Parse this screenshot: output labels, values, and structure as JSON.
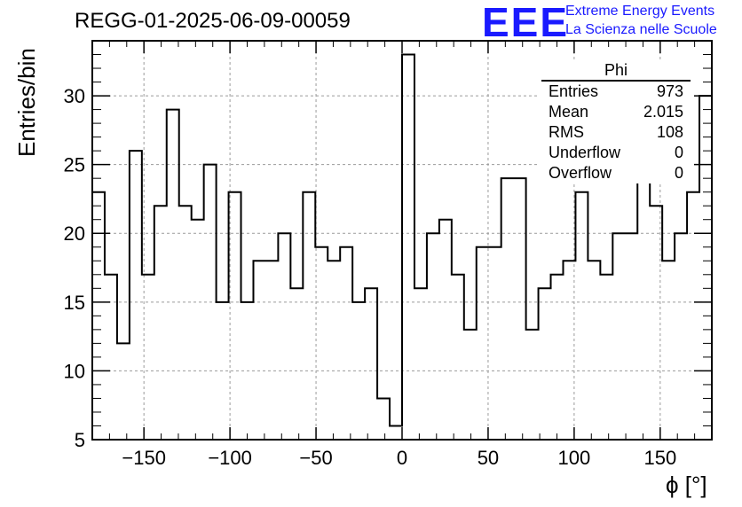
{
  "title": "REGG-01-2025-06-09-00059",
  "logo": {
    "mark": "EEE",
    "line1": "Extreme Energy Events",
    "line2": "La Scienza nelle Scuole"
  },
  "stats": {
    "name": "Phi",
    "rows": [
      {
        "key": "Entries",
        "value": "973"
      },
      {
        "key": "Mean",
        "value": "2.015"
      },
      {
        "key": "RMS",
        "value": "108"
      },
      {
        "key": "Underflow",
        "value": "0"
      },
      {
        "key": "Overflow",
        "value": "0"
      }
    ]
  },
  "chart_data": {
    "type": "histogram",
    "title": "REGG-01-2025-06-09-00059",
    "xlabel": "ϕ [°]",
    "ylabel": "Entries/bin",
    "xlim": [
      -180,
      180
    ],
    "ylim": [
      5,
      34
    ],
    "bin_width": 7.2,
    "grid": true,
    "x_ticks": [
      -150,
      -100,
      -50,
      0,
      50,
      100,
      150
    ],
    "x_tick_labels": [
      "−150",
      "−100",
      "−50",
      "0",
      "50",
      "100",
      "150"
    ],
    "y_ticks": [
      5,
      10,
      15,
      20,
      25,
      30
    ],
    "y_tick_labels": [
      "5",
      "10",
      "15",
      "20",
      "25",
      "30"
    ],
    "values": [
      23,
      17,
      12,
      26,
      17,
      22,
      29,
      22,
      21,
      25,
      15,
      23,
      15,
      18,
      18,
      20,
      16,
      23,
      19,
      18,
      19,
      15,
      16,
      8,
      6,
      33,
      16,
      20,
      21,
      17,
      13,
      19,
      19,
      24,
      24,
      13,
      16,
      17,
      18,
      23,
      18,
      17,
      20,
      20,
      29,
      22,
      18,
      20,
      23,
      30
    ]
  }
}
